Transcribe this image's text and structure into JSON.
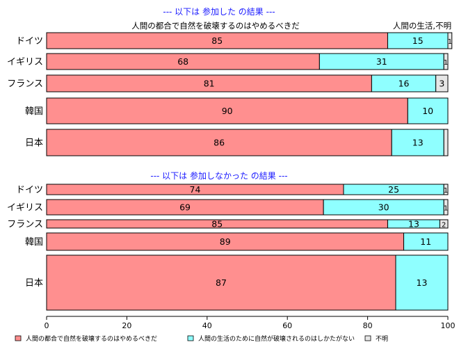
{
  "chart_data": {
    "type": "bar",
    "orientation": "horizontal",
    "stacked": true,
    "xlim": [
      0,
      100
    ],
    "x_ticks": [
      "0",
      "20",
      "40",
      "60",
      "80",
      "100"
    ],
    "column_headers": {
      "left": "人間の都合で自然を破壊するのはやめるべきだ",
      "right": "人間の生活,不明"
    },
    "colors": [
      "#ff8f8f",
      "#8fffff",
      "#e6e6e6"
    ],
    "legend": {
      "position": "bottom",
      "items": [
        {
          "label": "人間の都合で自然を破壊するのはやめるべきだ",
          "color": "#ff8f8f"
        },
        {
          "label": "人間の生活のために自然が破壊されるのはしかたがない",
          "color": "#8fffff"
        },
        {
          "label": "不明",
          "color": "#e6e6e6"
        }
      ]
    },
    "panels": [
      {
        "title": "--- 以下は 参加した の結果 ---",
        "categories": [
          "ドイツ",
          "イギリス",
          "フランス",
          "韓国",
          "日本"
        ],
        "series": [
          {
            "values": [
              85,
              68,
              81,
              90,
              86
            ]
          },
          {
            "values": [
              15,
              31,
              16,
              10,
              13
            ]
          },
          {
            "values": [
              1,
              1,
              3,
              0,
              1
            ]
          }
        ],
        "labels": [
          [
            "85",
            "15",
            "1"
          ],
          [
            "68",
            "31",
            "1"
          ],
          [
            "81",
            "16",
            "3"
          ],
          [
            "90",
            "10",
            ""
          ],
          [
            "86",
            "13",
            ""
          ]
        ]
      },
      {
        "title": "--- 以下は 参加しなかった の結果 ---",
        "categories": [
          "ドイツ",
          "イギリス",
          "フランス",
          "韓国",
          "日本"
        ],
        "series": [
          {
            "values": [
              74,
              69,
              85,
              89,
              87
            ]
          },
          {
            "values": [
              25,
              30,
              13,
              11,
              13
            ]
          },
          {
            "values": [
              1,
              1,
              2,
              0,
              0
            ]
          }
        ],
        "labels": [
          [
            "74",
            "25",
            "1"
          ],
          [
            "69",
            "30",
            "1"
          ],
          [
            "85",
            "13",
            "2"
          ],
          [
            "89",
            "11",
            ""
          ],
          [
            "87",
            "13",
            ""
          ]
        ]
      }
    ]
  }
}
